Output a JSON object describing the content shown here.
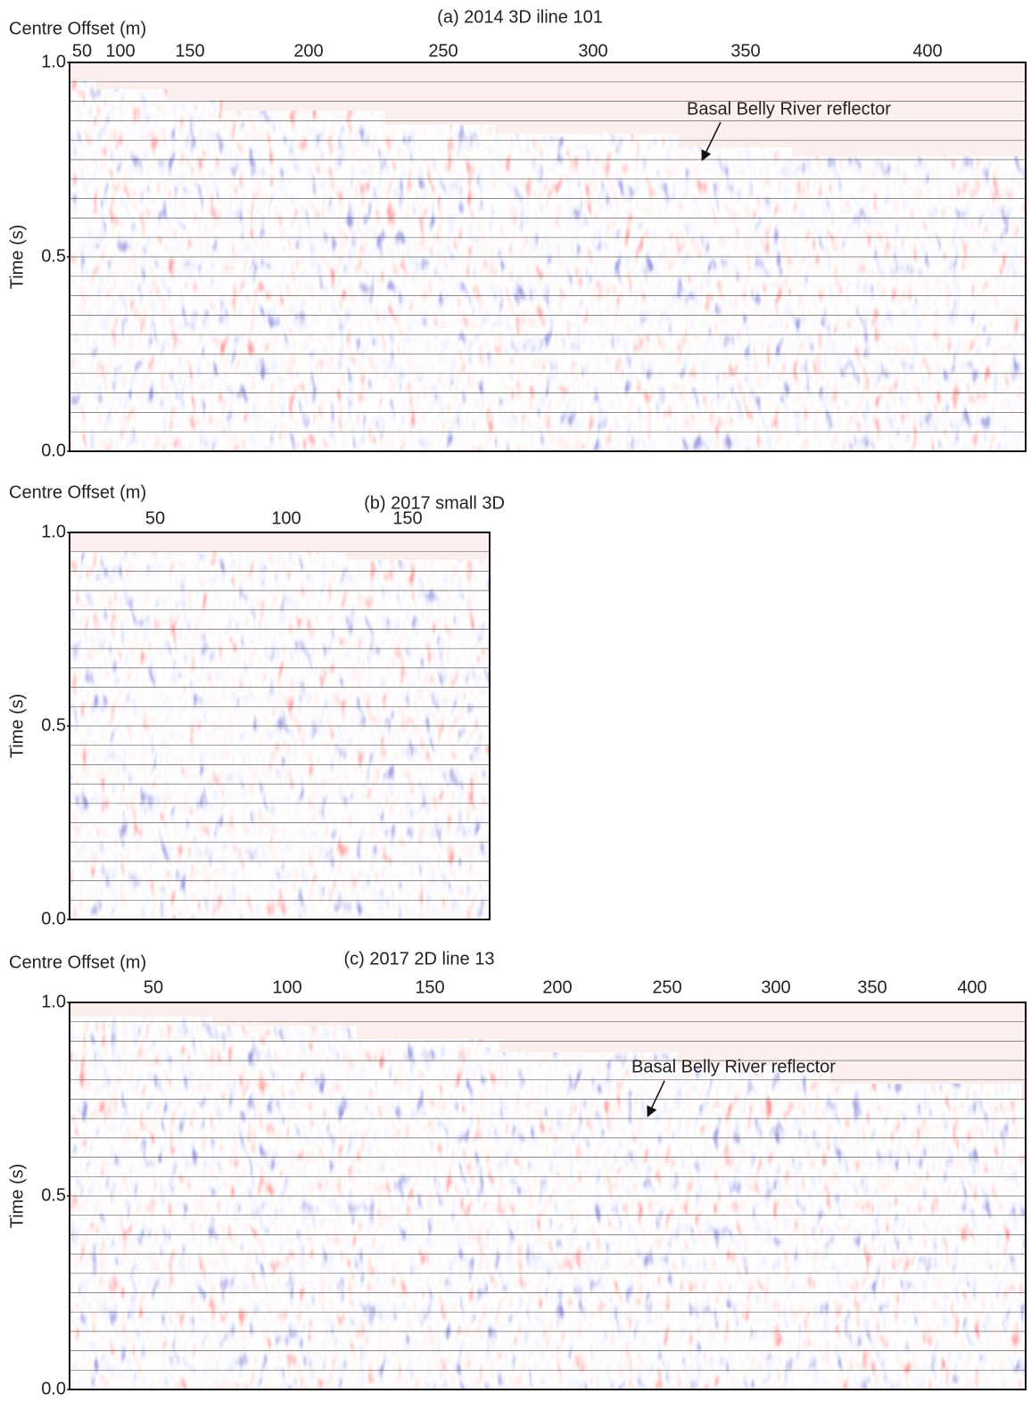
{
  "chart_data": [
    {
      "type": "seismic",
      "title": "(a) 2014 3D iline 101",
      "xlabel": "Centre Offset (m)",
      "ylabel": "Time (s)",
      "xticks": [
        50,
        100,
        150,
        200,
        250,
        300,
        350,
        400
      ],
      "ylim": [
        0,
        1
      ],
      "yticks": [
        {
          "value": 0,
          "label": "0.0"
        },
        0.5,
        {
          "value": 1,
          "label": "1.0"
        }
      ],
      "annotation": "Basal Belly River reflector"
    },
    {
      "type": "seismic",
      "title": "(b) 2017 small 3D",
      "xlabel": "Centre Offset (m)",
      "ylabel": "Time (s)",
      "xticks": [
        50,
        100,
        150
      ],
      "ylim": [
        0,
        1
      ],
      "yticks": [
        {
          "value": 0,
          "label": "0.0"
        },
        0.5,
        {
          "value": 1,
          "label": "1.0"
        }
      ]
    },
    {
      "type": "seismic",
      "title": "(c) 2017 2D line 13",
      "xlabel": "Centre Offset (m)",
      "ylabel": "Time (s)",
      "xticks": [
        50,
        100,
        150,
        200,
        250,
        300,
        350,
        400
      ],
      "ylim": [
        0,
        1
      ],
      "yticks": [
        {
          "value": 0,
          "label": "0.0"
        },
        0.5,
        {
          "value": 1,
          "label": "1.0"
        }
      ],
      "annotation": "Basal Belly River reflector"
    }
  ]
}
